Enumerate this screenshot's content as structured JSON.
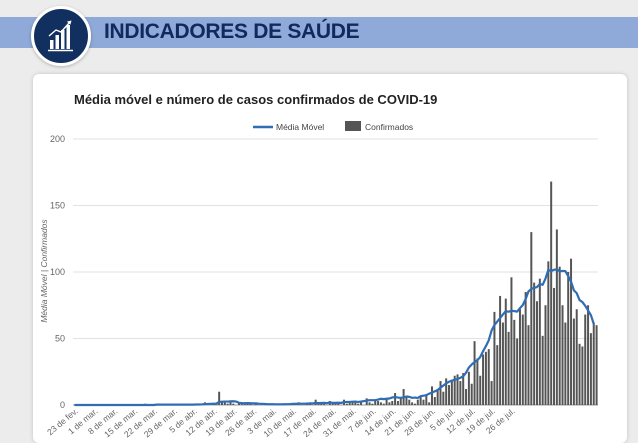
{
  "header": {
    "title": "INDICADORES DE SAÚDE",
    "logo_icon": "bar-chart-growth-icon"
  },
  "colors": {
    "banner": "#8fa9d8",
    "title": "#0e2a5e",
    "line": "#2f6db5",
    "bars": "#555555"
  },
  "chart_data": {
    "type": "bar",
    "title": "Média móvel e número de casos confirmados de COVID-19",
    "xlabel": "",
    "ylabel": "Média Móvel | Confirmados",
    "ylim": [
      0,
      200
    ],
    "yticks": [
      0,
      50,
      100,
      150,
      200
    ],
    "grid": true,
    "legend_position": "top-center",
    "x_start": "23 de fev.",
    "x_ticks": [
      "23 de fev.",
      "1 de mar.",
      "8 de mar.",
      "15 de mar.",
      "22 de mar.",
      "29 de mar.",
      "5 de abr.",
      "12 de abr.",
      "19 de abr.",
      "26 de abr.",
      "3 de mai.",
      "10 de mai.",
      "17 de mai.",
      "24 de mai.",
      "31 de mai.",
      "7 de jun.",
      "14 de jun.",
      "21 de jun.",
      "28 de jun.",
      "5 de jul.",
      "12 de jul.",
      "19 de jul.",
      "26 de jul."
    ],
    "series": [
      {
        "name": "Confirmados",
        "kind": "bar",
        "values": [
          0,
          0,
          0,
          0,
          0,
          0,
          0,
          0,
          0,
          0,
          0,
          0,
          0,
          0,
          0,
          0,
          0,
          0,
          0,
          0,
          0,
          0,
          0,
          0,
          0,
          1,
          0,
          0,
          0,
          1,
          0,
          0,
          0,
          0,
          0,
          1,
          0,
          0,
          0,
          0,
          0,
          0,
          0,
          1,
          1,
          0,
          2,
          1,
          0,
          1,
          1,
          10,
          3,
          2,
          1,
          2,
          1,
          0,
          2,
          1,
          2,
          2,
          1,
          0,
          1,
          0,
          0,
          1,
          0,
          1,
          1,
          0,
          0,
          0,
          1,
          0,
          1,
          1,
          1,
          2,
          0,
          0,
          1,
          1,
          0,
          4,
          1,
          1,
          2,
          0,
          3,
          1,
          2,
          1,
          0,
          4,
          1,
          2,
          3,
          2,
          1,
          3,
          0,
          5,
          2,
          1,
          4,
          3,
          2,
          1,
          5,
          2,
          3,
          9,
          3,
          5,
          12,
          6,
          4,
          2,
          1,
          4,
          7,
          4,
          8,
          2,
          14,
          6,
          12,
          18,
          10,
          20,
          15,
          19,
          22,
          23,
          18,
          24,
          12,
          25,
          16,
          48,
          35,
          22,
          38,
          40,
          42,
          18,
          70,
          45,
          82,
          62,
          80,
          55,
          96,
          64,
          50,
          72,
          68,
          85,
          60,
          130,
          92,
          78,
          95,
          52,
          75,
          108,
          168,
          88,
          132,
          104,
          75,
          62,
          100,
          110,
          65,
          72,
          46,
          44,
          68,
          75,
          54,
          62,
          60
        ]
      },
      {
        "name": "Média Móvel",
        "kind": "line",
        "values": [
          0,
          0,
          0,
          0,
          0,
          0,
          0,
          0,
          0,
          0,
          0,
          0,
          0,
          0,
          0,
          0,
          0,
          0,
          0,
          0,
          0,
          0,
          0,
          0,
          0,
          0,
          0,
          0,
          0,
          0.3,
          0.3,
          0.3,
          0.3,
          0.3,
          0.3,
          0.3,
          0.3,
          0.3,
          0.3,
          0.3,
          0.3,
          0.3,
          0.3,
          0.4,
          0.4,
          0.5,
          0.7,
          0.8,
          0.9,
          1,
          1,
          2.3,
          2.5,
          2.6,
          2.6,
          2.7,
          2.8,
          2.6,
          1.6,
          1.4,
          1.3,
          1.4,
          1.3,
          1.2,
          1.2,
          1,
          0.9,
          0.8,
          0.6,
          0.6,
          0.6,
          0.5,
          0.5,
          0.5,
          0.6,
          0.6,
          0.7,
          0.9,
          0.9,
          1.1,
          1,
          1,
          1.1,
          1.2,
          1.2,
          1.6,
          1.4,
          1.5,
          1.6,
          1.4,
          1.9,
          1.6,
          1.6,
          1.7,
          1.6,
          2.1,
          2.3,
          2.3,
          2.5,
          2.6,
          2.3,
          2.6,
          2.9,
          3.4,
          3.6,
          3.6,
          3.6,
          4.1,
          4.7,
          4.4,
          4.7,
          4.9,
          5.7,
          6,
          5.6,
          5.4,
          5.7,
          6.4,
          6.1,
          5.4,
          5.6,
          5.3,
          6.6,
          7,
          7.4,
          8.5,
          9.3,
          10.3,
          11.2,
          13.1,
          14.6,
          16.3,
          17.5,
          18.3,
          18.9,
          19.6,
          20.4,
          21.6,
          24.3,
          28.2,
          30.5,
          32.3,
          33.7,
          36.1,
          40.4,
          44.3,
          48.6,
          56,
          60.1,
          62.7,
          65.4,
          68.1,
          70.6,
          70.1,
          70.9,
          70.6,
          70.2,
          72.8,
          75.2,
          79.6,
          85.4,
          87.3,
          88,
          88.7,
          91,
          90.4,
          95.1,
          101.6,
          100.7,
          101.7,
          101.9,
          100.5,
          100.8,
          100.7,
          96.8,
          92.8,
          86.2,
          84.1,
          78.9,
          77.4,
          74.6,
          71.1,
          67.5,
          61
        ]
      }
    ]
  }
}
